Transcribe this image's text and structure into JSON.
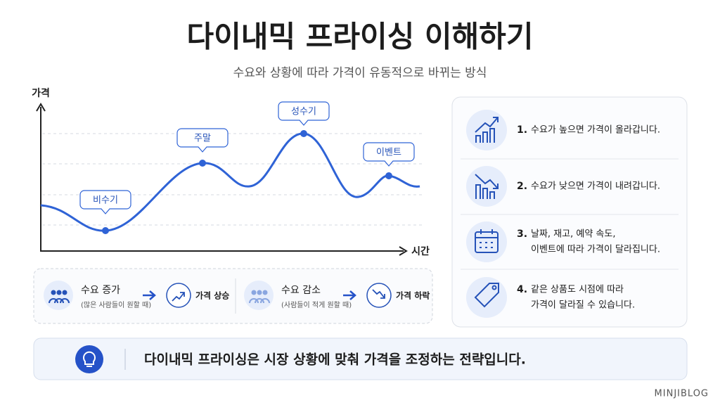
{
  "header": {
    "title": "다이내믹 프라이싱 이해하기",
    "subtitle": "수요와 상황에 따라 가격이 유동적으로 바뀌는 방식"
  },
  "graph": {
    "y_label": "가격",
    "x_label": "시간",
    "points": [
      "비수기",
      "주말",
      "성수기",
      "이벤트"
    ]
  },
  "legend": [
    {
      "title": "수요 증가",
      "note": "(많은 사람들이 원할 때)",
      "result": "가격 상승"
    },
    {
      "title": "수요 감소",
      "note": "(사람들이 적게 원할 때)",
      "result": "가격 하락"
    }
  ],
  "list": [
    {
      "number": "1.",
      "lines": [
        "수요가 높으면 가격이 올라갑니다."
      ]
    },
    {
      "number": "2.",
      "lines": [
        "수요가 낮으면 가격이 내려갑니다."
      ]
    },
    {
      "number": "3.",
      "lines": [
        "날짜, 재고, 예약 속도,",
        "이벤트에 따라 가격이 달라집니다."
      ]
    },
    {
      "number": "4.",
      "lines": [
        "같은 상품도 시점에 따라",
        "가격이 달라질 수 있습니다."
      ]
    }
  ],
  "footer": {
    "text": "다이내믹 프라이싱은 시장 상황에 맞춰 가격을 조정하는 전략입니다."
  },
  "watermark": "MINJIBLOG"
}
